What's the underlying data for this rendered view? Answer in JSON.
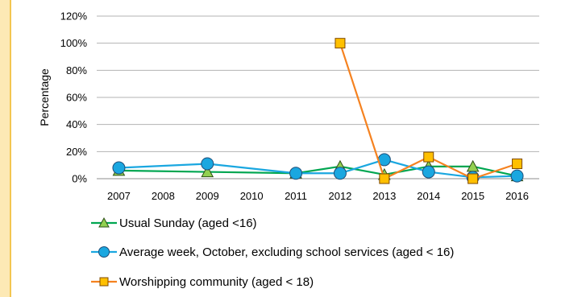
{
  "chart_data": {
    "type": "line",
    "ylabel": "Percentage",
    "xlabel": "",
    "title": "",
    "ylim": [
      0,
      120
    ],
    "yticks": [
      "0%",
      "20%",
      "40%",
      "60%",
      "80%",
      "100%",
      "120%"
    ],
    "categories": [
      "2007",
      "2008",
      "2009",
      "2010",
      "2011",
      "2012",
      "2013",
      "2014",
      "2015",
      "2016"
    ],
    "grid": true,
    "legend_position": "bottom",
    "series": [
      {
        "name": "Usual Sunday (aged <16)",
        "color": "#00a651",
        "marker": "triangle",
        "marker_fill": "#92d050",
        "values": [
          6,
          null,
          5,
          null,
          4,
          9,
          3,
          9,
          9,
          2
        ]
      },
      {
        "name": "Average week, October, excluding school services (aged < 16)",
        "color": "#1aa7e0",
        "marker": "circle",
        "marker_fill": "#1aa7e0",
        "values": [
          8,
          null,
          11,
          null,
          4,
          4,
          14,
          5,
          1,
          2
        ]
      },
      {
        "name": "Worshipping community (aged < 18)",
        "color": "#f58220",
        "marker": "square",
        "marker_fill": "#ffc000",
        "values": [
          null,
          null,
          null,
          null,
          null,
          100,
          0,
          16,
          0,
          11
        ]
      }
    ]
  }
}
